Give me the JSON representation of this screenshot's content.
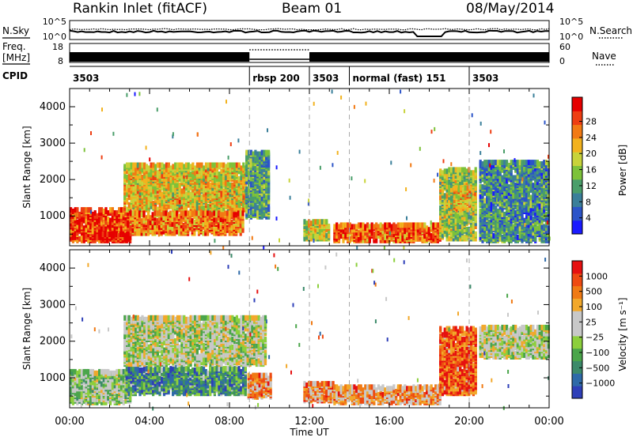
{
  "header": {
    "station": "Rankin Inlet (fitACF)",
    "beam": "Beam 01",
    "date": "08/May/2014"
  },
  "status_panels": {
    "nsky_label": "N.Sky",
    "nsearch_label": "N.Search",
    "freq_label": "Freq.",
    "freq_unit": "[MHz]",
    "nave_label": "Nave",
    "cpid_label": "CPID",
    "noise_ticks_left": [
      "10^5",
      "10^0"
    ],
    "noise_ticks_right": [
      "10^5",
      "10^0"
    ],
    "freq_ticks": [
      "18",
      "8"
    ],
    "nave_ticks": [
      "60",
      "0"
    ]
  },
  "cpid_segments": [
    {
      "start_h": 0.0,
      "end_h": 9.0,
      "label": "3503"
    },
    {
      "start_h": 9.0,
      "end_h": 12.0,
      "label": "rbsp 200"
    },
    {
      "start_h": 12.0,
      "end_h": 14.0,
      "label": "3503"
    },
    {
      "start_h": 14.0,
      "end_h": 20.0,
      "label": "normal (fast) 151"
    },
    {
      "start_h": 20.0,
      "end_h": 24.0,
      "label": "3503"
    }
  ],
  "chart_data": [
    {
      "type": "heatmap",
      "title": "",
      "xlabel": "Time UT",
      "ylabel": "Slant Range [km]",
      "xlim": [
        0,
        24
      ],
      "ylim": [
        180,
        4500
      ],
      "xticks": [
        "00:00",
        "04:00",
        "08:00",
        "12:00",
        "16:00",
        "20:00",
        "00:00"
      ],
      "yticks": [
        "1000",
        "2000",
        "3000",
        "4000"
      ],
      "colorbar": {
        "label": "Power [dB]",
        "ticks": [
          "4",
          "8",
          "12",
          "16",
          "20",
          "24",
          "28"
        ],
        "colors": [
          "#1a1aff",
          "#2b54c8",
          "#3a7f9a",
          "#4a9e6a",
          "#7dc23a",
          "#c8d33a",
          "#f2b21e",
          "#f27a14",
          "#ee3e12",
          "#e60000"
        ]
      },
      "echo_regions": [
        {
          "t0": 0.0,
          "t1": 3.0,
          "r0": 250,
          "r1": 1100,
          "level": 0.85
        },
        {
          "t0": 1.5,
          "t1": 3.0,
          "r0": 250,
          "r1": 450,
          "level": 1.0
        },
        {
          "t0": 2.7,
          "t1": 8.8,
          "r0": 1100,
          "r1": 2350,
          "level": 0.6
        },
        {
          "t0": 3.0,
          "t1": 8.7,
          "r0": 450,
          "r1": 1000,
          "level": 0.75
        },
        {
          "t0": 8.8,
          "t1": 10.0,
          "r0": 900,
          "r1": 2700,
          "level": 0.35
        },
        {
          "t0": 11.7,
          "t1": 13.0,
          "r0": 300,
          "r1": 800,
          "level": 0.55
        },
        {
          "t0": 13.2,
          "t1": 18.5,
          "r0": 250,
          "r1": 700,
          "level": 0.8
        },
        {
          "t0": 18.5,
          "t1": 20.3,
          "r0": 300,
          "r1": 2200,
          "level": 0.5
        },
        {
          "t0": 19.2,
          "t1": 20.0,
          "r0": 1100,
          "r1": 1700,
          "level": 0.65
        },
        {
          "t0": 20.5,
          "t1": 24.0,
          "r0": 250,
          "r1": 2400,
          "level": 0.3
        }
      ]
    },
    {
      "type": "heatmap",
      "title": "",
      "xlabel": "Time UT",
      "ylabel": "Slant Range [km]",
      "xlim": [
        0,
        24
      ],
      "ylim": [
        180,
        4500
      ],
      "xticks": [
        "00:00",
        "04:00",
        "08:00",
        "12:00",
        "16:00",
        "20:00",
        "00:00"
      ],
      "yticks": [
        "1000",
        "2000",
        "3000",
        "4000"
      ],
      "colorbar": {
        "label": "Velocity [m s⁻¹]",
        "ticks": [
          "1000",
          "500",
          "100",
          "25",
          "−25",
          "−100",
          "−500",
          "−1000"
        ],
        "colors": [
          "#2e3fb8",
          "#2e6aa8",
          "#3c8a6a",
          "#4aa54a",
          "#8ccf3c",
          "#c8c8c8",
          "#c8c8c8",
          "#f2a82a",
          "#f07a14",
          "#ee4a12",
          "#e61010"
        ]
      },
      "echo_regions": [
        {
          "t0": 0.0,
          "t1": 3.0,
          "r0": 250,
          "r1": 1100,
          "level": 0.45
        },
        {
          "t0": 2.8,
          "t1": 8.8,
          "r0": 500,
          "r1": 1200,
          "level": 0.25
        },
        {
          "t0": 2.7,
          "t1": 9.8,
          "r0": 1300,
          "r1": 2600,
          "level": 0.5
        },
        {
          "t0": 8.9,
          "t1": 10.0,
          "r0": 400,
          "r1": 1000,
          "level": 0.72
        },
        {
          "t0": 11.7,
          "t1": 13.2,
          "r0": 300,
          "r1": 800,
          "level": 0.72
        },
        {
          "t0": 13.2,
          "t1": 18.5,
          "r0": 250,
          "r1": 700,
          "level": 0.7
        },
        {
          "t0": 18.5,
          "t1": 20.3,
          "r0": 500,
          "r1": 2300,
          "level": 0.85
        },
        {
          "t0": 20.5,
          "t1": 24.0,
          "r0": 1500,
          "r1": 2300,
          "level": 0.5
        }
      ]
    }
  ]
}
